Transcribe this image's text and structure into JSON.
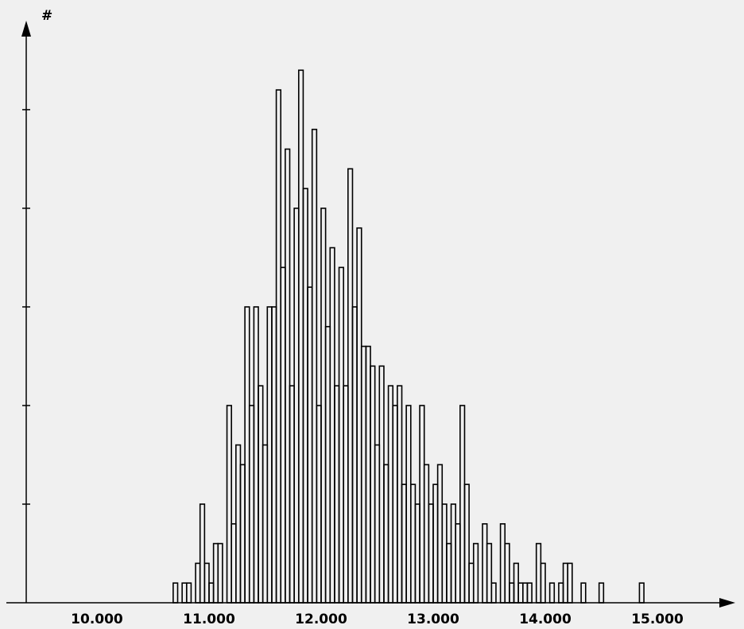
{
  "chart_data": {
    "type": "histogram",
    "y_label": "#",
    "bins": [
      10.68,
      10.72,
      10.76,
      10.8,
      10.84,
      10.88,
      10.92,
      10.96,
      11,
      11.04,
      11.08,
      11.12,
      11.16,
      11.2,
      11.24,
      11.28,
      11.32,
      11.36,
      11.4,
      11.44,
      11.48,
      11.52,
      11.56,
      11.6,
      11.64,
      11.68,
      11.72,
      11.76,
      11.8,
      11.84,
      11.88,
      11.92,
      11.96,
      12,
      12.04,
      12.08,
      12.12,
      12.16,
      12.2,
      12.24,
      12.28,
      12.32,
      12.36,
      12.4,
      12.44,
      12.48,
      12.52,
      12.56,
      12.6,
      12.64,
      12.68,
      12.72,
      12.76,
      12.8,
      12.84,
      12.88,
      12.92,
      12.96,
      13,
      13.04,
      13.08,
      13.12,
      13.16,
      13.2,
      13.24,
      13.28,
      13.32,
      13.36,
      13.4,
      13.44,
      13.48,
      13.52,
      13.56,
      13.6,
      13.64,
      13.68,
      13.72,
      13.76,
      13.8,
      13.84,
      13.88,
      13.92,
      13.96,
      14,
      14.04,
      14.08,
      14.12,
      14.16,
      14.2,
      14.24,
      14.28,
      14.32,
      14.36,
      14.4,
      14.44,
      14.48,
      14.52,
      14.56,
      14.6,
      14.64,
      14.68,
      14.72,
      14.76,
      14.8,
      14.84,
      14.88
    ],
    "values": [
      1,
      0,
      1,
      1,
      0,
      2,
      5,
      2,
      1,
      3,
      3,
      0,
      10,
      4,
      8,
      7,
      15,
      10,
      15,
      11,
      8,
      15,
      15,
      26,
      17,
      23,
      11,
      20,
      27,
      21,
      16,
      24,
      10,
      20,
      14,
      18,
      11,
      17,
      11,
      22,
      15,
      19,
      13,
      13,
      12,
      8,
      12,
      7,
      11,
      10,
      11,
      6,
      10,
      6,
      5,
      10,
      7,
      5,
      6,
      7,
      5,
      3,
      5,
      4,
      10,
      6,
      2,
      3,
      0,
      4,
      3,
      1,
      0,
      4,
      3,
      1,
      2,
      1,
      1,
      1,
      0,
      3,
      2,
      0,
      1,
      0,
      1,
      2,
      2,
      0,
      0,
      1,
      0,
      0,
      0,
      1,
      0,
      0,
      0,
      0,
      0,
      0,
      0,
      0,
      1
    ],
    "color": "#000000",
    "xlim": [
      9.369,
      15.695
    ],
    "xticks": [
      {
        "value": 10,
        "label": "10.000"
      },
      {
        "value": 11,
        "label": "11.000"
      },
      {
        "value": 12,
        "label": "12.000"
      },
      {
        "value": 13,
        "label": "13.000"
      },
      {
        "value": 14,
        "label": "14.000"
      },
      {
        "value": 15,
        "label": "15.000"
      }
    ],
    "ylim": [
      0,
      29.35
    ],
    "yticks": [
      5,
      10,
      15,
      20,
      25
    ]
  }
}
